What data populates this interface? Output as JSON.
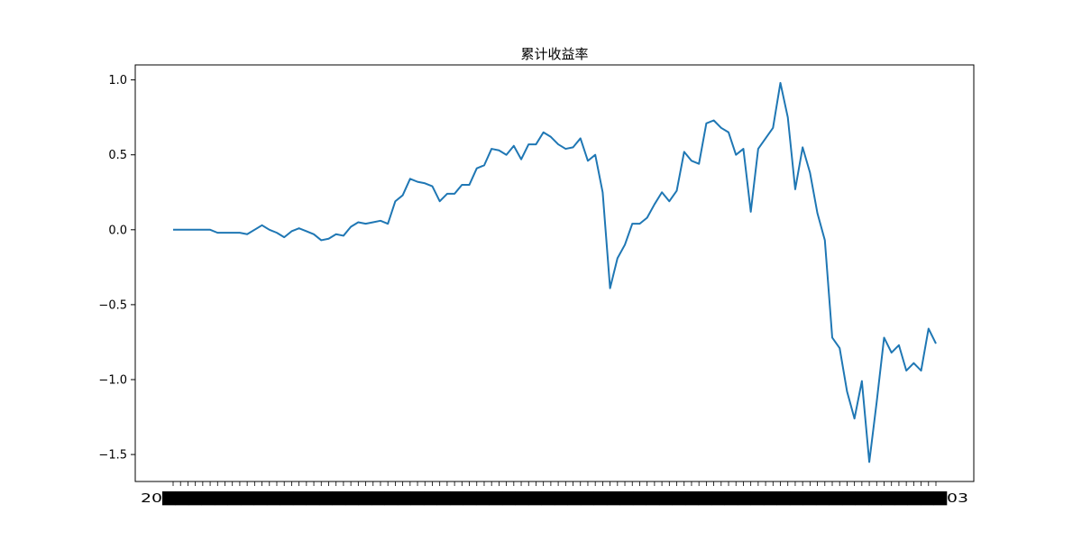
{
  "chart_data": {
    "type": "line",
    "title": "累计收益率",
    "xlabel": "",
    "ylabel": "",
    "ylim": [
      -1.68,
      1.1
    ],
    "yticks": [
      "1.0",
      "0.5",
      "0.0",
      "−0.5",
      "−1.0",
      "−1.5"
    ],
    "xtick_labels_visible": [
      "20",
      "03"
    ],
    "grid": false,
    "legend": "none",
    "series": [
      {
        "color": "#1f77b4",
        "values": [
          0.0,
          0.0,
          0.0,
          0.0,
          0.0,
          0.0,
          -0.02,
          -0.02,
          -0.02,
          -0.02,
          -0.03,
          0.0,
          0.03,
          0.0,
          -0.02,
          -0.05,
          -0.01,
          0.01,
          -0.01,
          -0.03,
          -0.07,
          -0.06,
          -0.03,
          -0.04,
          0.02,
          0.05,
          0.04,
          0.05,
          0.06,
          0.04,
          0.19,
          0.23,
          0.34,
          0.32,
          0.31,
          0.29,
          0.19,
          0.24,
          0.24,
          0.3,
          0.3,
          0.41,
          0.43,
          0.54,
          0.53,
          0.5,
          0.56,
          0.47,
          0.57,
          0.57,
          0.65,
          0.62,
          0.57,
          0.54,
          0.55,
          0.61,
          0.46,
          0.5,
          0.25,
          -0.39,
          -0.19,
          -0.1,
          0.04,
          0.04,
          0.08,
          0.17,
          0.25,
          0.19,
          0.26,
          0.52,
          0.46,
          0.44,
          0.71,
          0.73,
          0.68,
          0.65,
          0.5,
          0.54,
          0.12,
          0.54,
          0.61,
          0.68,
          0.98,
          0.75,
          0.27,
          0.55,
          0.38,
          0.11,
          -0.07,
          -0.72,
          -0.79,
          -1.08,
          -1.26,
          -1.01,
          -1.55,
          -1.15,
          -0.72,
          -0.82,
          -0.77,
          -0.94,
          -0.89,
          -0.94,
          -0.66,
          -0.76
        ]
      }
    ]
  }
}
